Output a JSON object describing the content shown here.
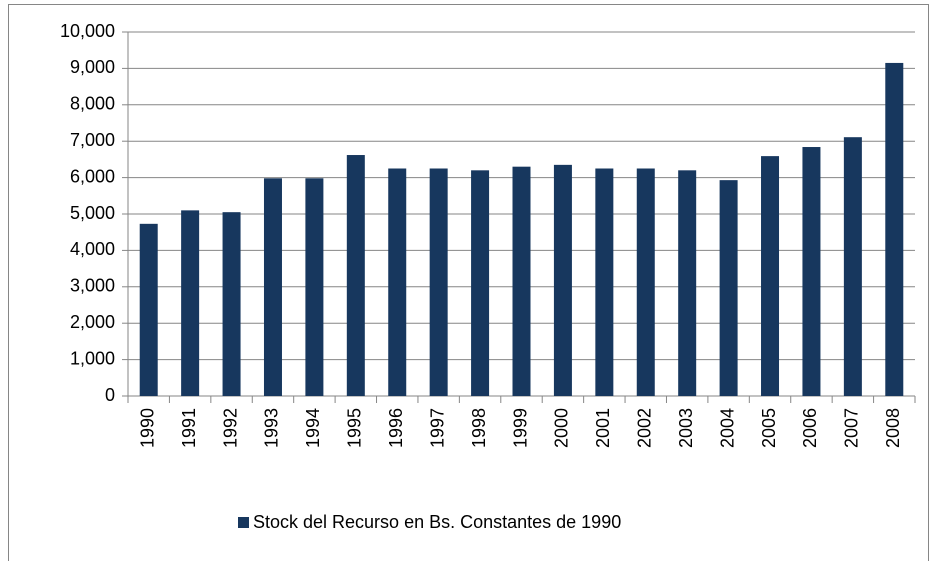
{
  "chart_data": {
    "type": "bar",
    "categories": [
      "1990",
      "1991",
      "1992",
      "1993",
      "1994",
      "1995",
      "1996",
      "1997",
      "1998",
      "1999",
      "2000",
      "2001",
      "2002",
      "2003",
      "2004",
      "2005",
      "2006",
      "2007",
      "2008"
    ],
    "series": [
      {
        "name": "Stock del Recurso en Bs. Constantes  de 1990",
        "color": "#17375e",
        "values": [
          4730,
          5100,
          5050,
          5980,
          5980,
          6620,
          6250,
          6250,
          6200,
          6300,
          6350,
          6250,
          6250,
          6200,
          5930,
          6590,
          6840,
          7110,
          9150
        ]
      }
    ],
    "ylim": [
      0,
      10000
    ],
    "yticks": [
      0,
      {
        "value": 1000,
        "label": "1,000"
      },
      {
        "value": 2000,
        "label": "2,000"
      },
      {
        "value": 3000,
        "label": "3,000"
      },
      {
        "value": 4000,
        "label": "4,000"
      },
      {
        "value": 5000,
        "label": "5,000"
      },
      {
        "value": 6000,
        "label": "6,000"
      },
      {
        "value": 7000,
        "label": "7,000"
      },
      {
        "value": 8000,
        "label": "8,000"
      },
      {
        "value": 9000,
        "label": "9,000"
      },
      {
        "value": 10000,
        "label": "10,000"
      }
    ],
    "grid": true,
    "legend": "bottom"
  }
}
